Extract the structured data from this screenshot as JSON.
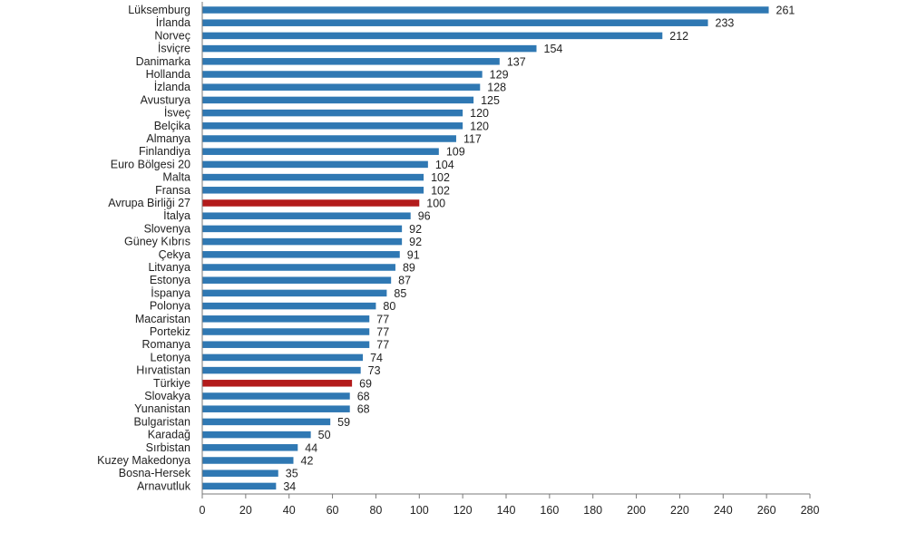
{
  "chart_data": {
    "type": "bar",
    "orientation": "horizontal",
    "title": "",
    "xlabel": "",
    "ylabel": "",
    "xlim": [
      0,
      280
    ],
    "xticks": [
      0,
      20,
      40,
      60,
      80,
      100,
      120,
      140,
      160,
      180,
      200,
      220,
      240,
      260,
      280
    ],
    "grid": false,
    "legend": "none",
    "colors": {
      "default": "#2f78b3",
      "highlight": "#b31b1b"
    },
    "categories": [
      "Lüksemburg",
      "İrlanda",
      "Norveç",
      "İsviçre",
      "Danimarka",
      "Hollanda",
      "İzlanda",
      "Avusturya",
      "İsveç",
      "Belçika",
      "Almanya",
      "Finlandiya",
      "Euro Bölgesi 20",
      "Malta",
      "Fransa",
      "Avrupa Birliği 27",
      "İtalya",
      "Slovenya",
      "Güney Kıbrıs",
      "Çekya",
      "Litvanya",
      "Estonya",
      "İspanya",
      "Polonya",
      "Macaristan",
      "Portekiz",
      "Romanya",
      "Letonya",
      "Hırvatistan",
      "Türkiye",
      "Slovakya",
      "Yunanistan",
      "Bulgaristan",
      "Karadağ",
      "Sırbistan",
      "Kuzey Makedonya",
      "Bosna-Hersek",
      "Arnavutluk"
    ],
    "values": [
      261,
      233,
      212,
      154,
      137,
      129,
      128,
      125,
      120,
      120,
      117,
      109,
      104,
      102,
      102,
      100,
      96,
      92,
      92,
      91,
      89,
      87,
      85,
      80,
      77,
      77,
      77,
      74,
      73,
      69,
      68,
      68,
      59,
      50,
      44,
      42,
      35,
      34
    ],
    "highlighted": [
      "Avrupa Birliği 27",
      "Türkiye"
    ]
  }
}
